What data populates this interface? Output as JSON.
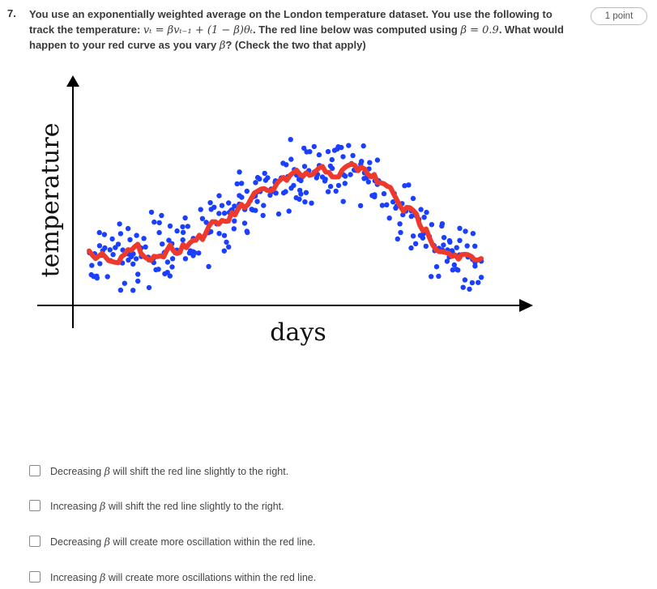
{
  "question": {
    "number": "7.",
    "points": "1 point",
    "text_1": "You use an exponentially weighted average on the London temperature dataset. You use the following to track the temperature: ",
    "formula": "vₜ = βvₜ₋₁ + (1 − β)θₜ",
    "text_2": ". The red line below was computed using ",
    "beta_value": "β = 0.9",
    "text_3": ". What would happen to your red curve as you vary ",
    "beta_symbol": "β",
    "text_4": "? (Check the two that apply)"
  },
  "chart_data": {
    "type": "scatter",
    "xlabel": "days",
    "ylabel": "temperature",
    "colors": {
      "points": "#1a3fff",
      "line": "#ee3a2c",
      "axes": "#000000"
    }
  },
  "options": [
    {
      "pre": "Decreasing ",
      "beta": "β",
      "post": " will shift the red line slightly to the right."
    },
    {
      "pre": "Increasing ",
      "beta": "β",
      "post": " will shift the red line slightly to the right."
    },
    {
      "pre": "Decreasing ",
      "beta": "β",
      "post": " will create more oscillation within the red line."
    },
    {
      "pre": "Increasing ",
      "beta": "β",
      "post": " will create more oscillations within the red line."
    }
  ]
}
